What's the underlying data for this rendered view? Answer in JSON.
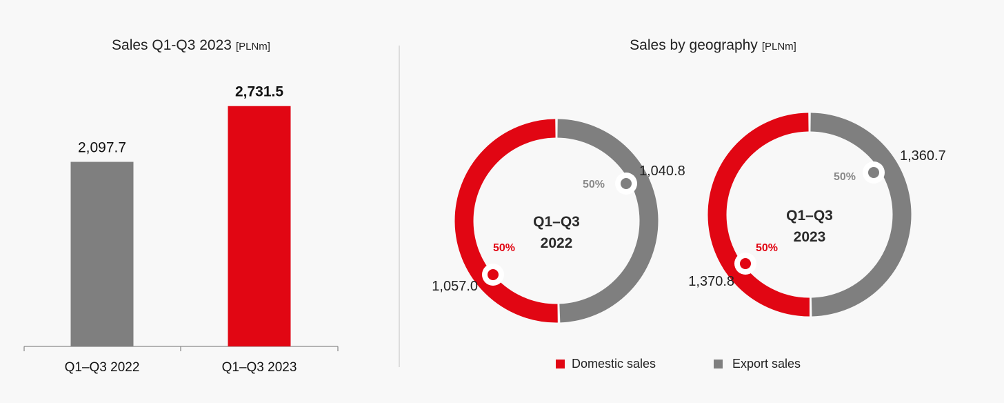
{
  "colors": {
    "domestic": "#e10613",
    "export": "#7f7f7f",
    "background": "#f8f8f8"
  },
  "chart_data": [
    {
      "type": "bar",
      "title": "Sales Q1-Q3 2023",
      "unit": "[PLNm]",
      "categories": [
        "Q1–Q3 2022",
        "Q1–Q3 2023"
      ],
      "values": [
        2097.7,
        2731.5
      ],
      "value_labels": [
        "2,097.7",
        "2,731.5"
      ],
      "bar_colors": [
        "#7f7f7f",
        "#e10613"
      ],
      "ylim": [
        0,
        3200
      ],
      "grid": false
    },
    {
      "type": "pie",
      "title": "Sales by geography",
      "unit": "[PLNm]",
      "legend": [
        "Domestic sales",
        "Export sales"
      ],
      "legend_position": "bottom",
      "donuts": [
        {
          "center_label": [
            "Q1–Q3",
            "2022"
          ],
          "slices": [
            {
              "name": "Domestic sales",
              "value": 1057.0,
              "label": "1,057.0",
              "percent": "50%"
            },
            {
              "name": "Export sales",
              "value": 1040.8,
              "label": "1,040.8",
              "percent": "50%"
            }
          ]
        },
        {
          "center_label": [
            "Q1–Q3",
            "2023"
          ],
          "slices": [
            {
              "name": "Domestic sales",
              "value": 1370.8,
              "label": "1,370.8",
              "percent": "50%"
            },
            {
              "name": "Export sales",
              "value": 1360.7,
              "label": "1,360.7",
              "percent": "50%"
            }
          ]
        }
      ]
    }
  ]
}
